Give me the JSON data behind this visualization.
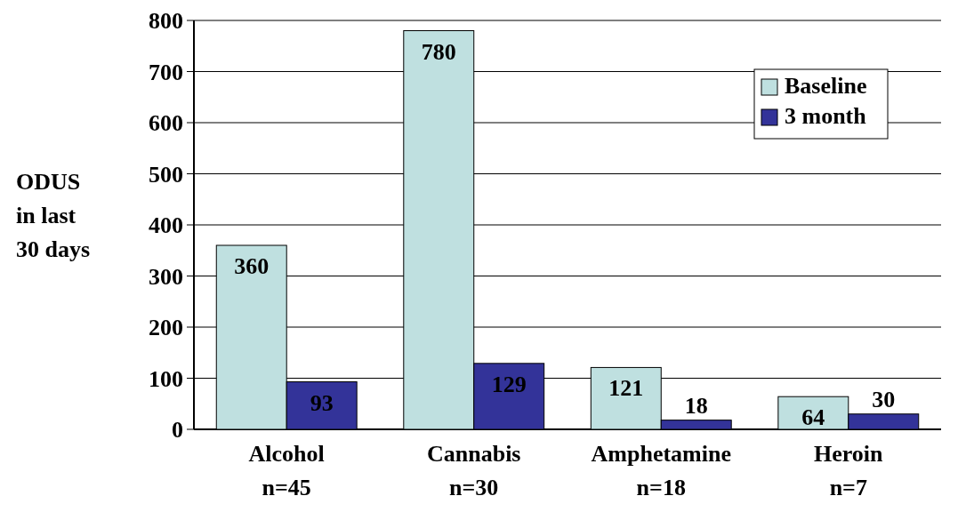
{
  "chart_data": {
    "type": "bar",
    "ylabel": "ODUS\nin last\n30 days",
    "categories": [
      "Alcohol\nn=45",
      "Cannabis\nn=30",
      "Amphetamine\nn=18",
      "Heroin\nn=7"
    ],
    "series": [
      {
        "name": "Baseline",
        "color": "#bfe0e0",
        "values": [
          360,
          780,
          121,
          64
        ]
      },
      {
        "name": "3 month",
        "color": "#333399",
        "values": [
          93,
          129,
          18,
          30
        ]
      }
    ],
    "ylim": [
      0,
      800
    ],
    "yticks": [
      0,
      100,
      200,
      300,
      400,
      500,
      600,
      700,
      800
    ],
    "grid": "y",
    "legend": "top right",
    "data_labels": true
  }
}
